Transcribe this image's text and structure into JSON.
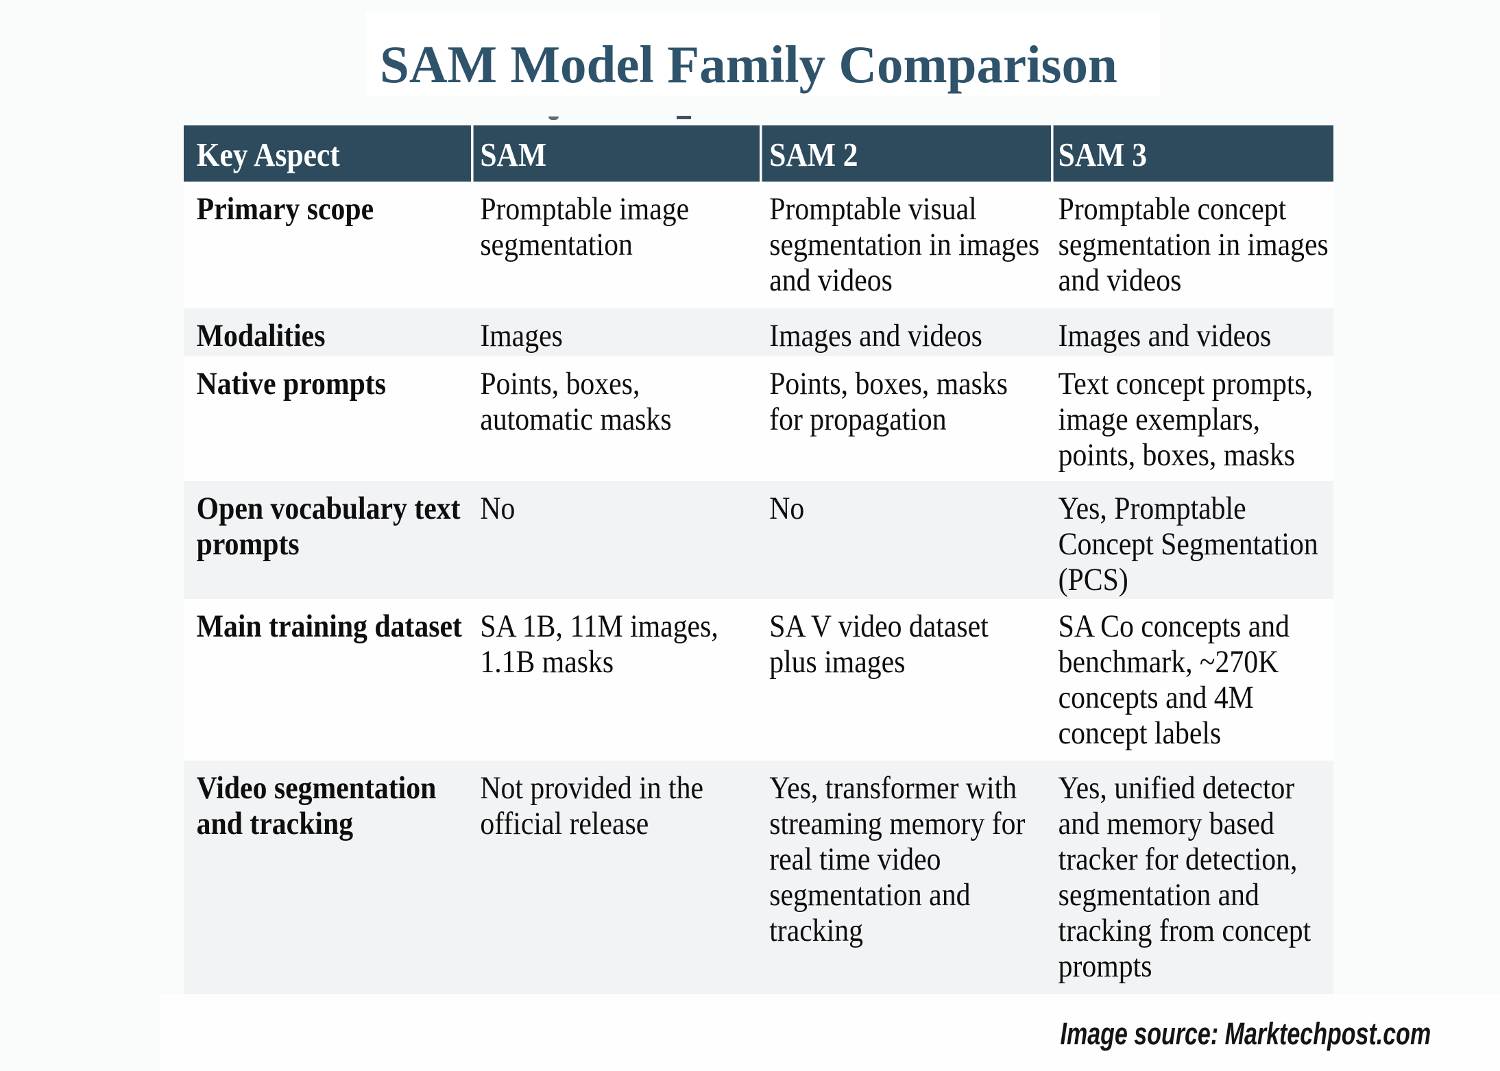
{
  "title": "SAM Model Family Comparison",
  "source_note": "Image source: Marktechpost.com",
  "colors": {
    "header_bg": "#2d4b5d",
    "title_text": "#2e536b",
    "row_alt_bg": "#f2f3f5",
    "row_bg": "#fefefe",
    "body_text": "#0e0e0e"
  },
  "table": {
    "columns": [
      "Key Aspect",
      "SAM",
      "SAM 2",
      "SAM 3"
    ],
    "rows": [
      {
        "aspect": "Primary scope",
        "sam": "Promptable image\nsegmentation",
        "sam2": "Promptable visual\nsegmentation in images\nand videos",
        "sam3": "Promptable concept\nsegmentation in images\nand videos"
      },
      {
        "aspect": "Modalities",
        "sam": "Images",
        "sam2": "Images and videos",
        "sam3": "Images and videos"
      },
      {
        "aspect": "Native prompts",
        "sam": "Points, boxes,\nautomatic masks",
        "sam2": "Points, boxes, masks\nfor propagation",
        "sam3": "Text concept prompts,\nimage exemplars,\npoints, boxes, masks"
      },
      {
        "aspect": "Open vocabulary text\nprompts",
        "sam": "No",
        "sam2": "No",
        "sam3": "Yes, Promptable\nConcept Segmentation\n(PCS)"
      },
      {
        "aspect": "Main training dataset",
        "sam": "SA 1B, 11M images,\n1.1B masks",
        "sam2": "SA V video dataset\nplus images",
        "sam3": "SA Co concepts and\nbenchmark, ~270K\nconcepts and 4M\nconcept labels"
      },
      {
        "aspect": "Video segmentation\nand tracking",
        "sam": "Not provided in the\nofficial release",
        "sam2": "Yes, transformer with\nstreaming memory for\nreal time video\nsegmentation and\ntracking",
        "sam3": "Yes, unified detector\nand memory based\ntracker for detection,\nsegmentation and\ntracking from concept\nprompts"
      }
    ]
  }
}
